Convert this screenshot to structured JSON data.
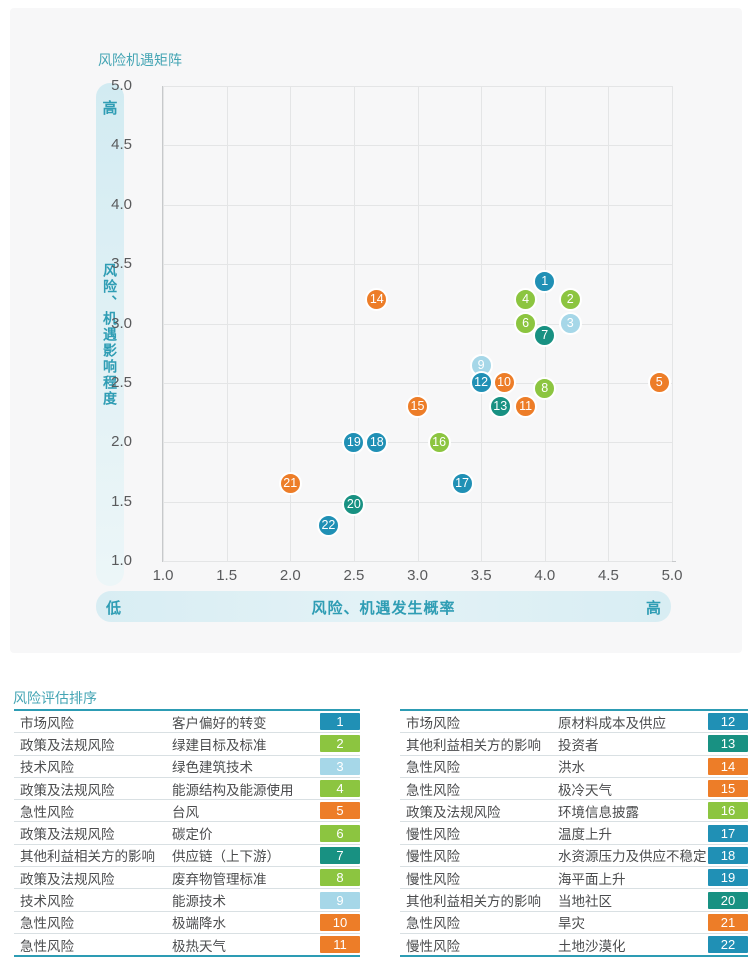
{
  "chart": {
    "title": "风险机遇矩阵",
    "y_band": {
      "high_label": "高",
      "title": "风险、机遇影响程度"
    },
    "x_band": {
      "low_label": "低",
      "title": "风险、机遇发生概率",
      "high_label": "高"
    }
  },
  "chart_data": {
    "type": "scatter",
    "title": "风险机遇矩阵",
    "xlabel": "风险、机遇发生概率",
    "ylabel": "风险、机遇影响程度",
    "xlim": [
      1.0,
      5.0
    ],
    "ylim": [
      1.0,
      5.0
    ],
    "grid": true,
    "x_ticks": [
      "1.0",
      "1.5",
      "2.0",
      "2.5",
      "3.0",
      "3.5",
      "4.0",
      "4.5",
      "5.0"
    ],
    "y_ticks": [
      "5.0",
      "4.5",
      "4.0",
      "3.5",
      "3.0",
      "2.5",
      "2.0",
      "1.5",
      "1.0"
    ],
    "categories": {
      "market": {
        "label": "市场风险",
        "color": "#2090b5"
      },
      "policy": {
        "label": "政策及法规风险",
        "color": "#8cc540"
      },
      "tech": {
        "label": "技术风险",
        "color": "#a6d7e8"
      },
      "acute": {
        "label": "急性风险",
        "color": "#ed7d28"
      },
      "chronic": {
        "label": "慢性风险",
        "color": "#2090b5"
      },
      "stakeholder": {
        "label": "其他利益相关方的影响",
        "color": "#189182"
      }
    },
    "draw_order": [
      "policy",
      "tech",
      "market",
      "chronic",
      "stakeholder",
      "acute"
    ],
    "points": [
      {
        "id": 1,
        "x": 4.0,
        "y": 3.35,
        "category": "market"
      },
      {
        "id": 2,
        "x": 4.2,
        "y": 3.2,
        "category": "policy"
      },
      {
        "id": 3,
        "x": 4.2,
        "y": 3.0,
        "category": "tech"
      },
      {
        "id": 4,
        "x": 3.85,
        "y": 3.2,
        "category": "policy"
      },
      {
        "id": 5,
        "x": 4.9,
        "y": 2.5,
        "category": "acute"
      },
      {
        "id": 6,
        "x": 3.85,
        "y": 3.0,
        "category": "policy"
      },
      {
        "id": 7,
        "x": 4.0,
        "y": 2.9,
        "category": "stakeholder"
      },
      {
        "id": 8,
        "x": 4.0,
        "y": 2.45,
        "category": "policy"
      },
      {
        "id": 9,
        "x": 3.5,
        "y": 2.65,
        "category": "tech"
      },
      {
        "id": 10,
        "x": 3.68,
        "y": 2.5,
        "category": "acute"
      },
      {
        "id": 11,
        "x": 3.85,
        "y": 2.3,
        "category": "acute"
      },
      {
        "id": 12,
        "x": 3.5,
        "y": 2.5,
        "category": "market"
      },
      {
        "id": 13,
        "x": 3.65,
        "y": 2.3,
        "category": "stakeholder"
      },
      {
        "id": 14,
        "x": 2.68,
        "y": 3.2,
        "category": "acute"
      },
      {
        "id": 15,
        "x": 3.0,
        "y": 2.3,
        "category": "acute"
      },
      {
        "id": 16,
        "x": 3.17,
        "y": 2.0,
        "category": "policy"
      },
      {
        "id": 17,
        "x": 3.35,
        "y": 1.65,
        "category": "chronic"
      },
      {
        "id": 18,
        "x": 2.68,
        "y": 2.0,
        "category": "chronic"
      },
      {
        "id": 19,
        "x": 2.5,
        "y": 2.0,
        "category": "chronic"
      },
      {
        "id": 20,
        "x": 2.5,
        "y": 1.48,
        "category": "stakeholder"
      },
      {
        "id": 21,
        "x": 2.0,
        "y": 1.65,
        "category": "acute"
      },
      {
        "id": 22,
        "x": 2.3,
        "y": 1.3,
        "category": "chronic"
      }
    ]
  },
  "ranking": {
    "title": "风险评估排序",
    "left_rows": [
      {
        "category": "市场风险",
        "item": "客户偏好的转变",
        "rank": 1,
        "color_key": "market"
      },
      {
        "category": "政策及法规风险",
        "item": "绿建目标及标准",
        "rank": 2,
        "color_key": "policy"
      },
      {
        "category": "技术风险",
        "item": "绿色建筑技术",
        "rank": 3,
        "color_key": "tech"
      },
      {
        "category": "政策及法规风险",
        "item": "能源结构及能源使用",
        "rank": 4,
        "color_key": "policy"
      },
      {
        "category": "急性风险",
        "item": "台风",
        "rank": 5,
        "color_key": "acute"
      },
      {
        "category": "政策及法规风险",
        "item": "碳定价",
        "rank": 6,
        "color_key": "policy"
      },
      {
        "category": "其他利益相关方的影响",
        "item": "供应链（上下游）",
        "rank": 7,
        "color_key": "stakeholder"
      },
      {
        "category": "政策及法规风险",
        "item": "废弃物管理标准",
        "rank": 8,
        "color_key": "policy"
      },
      {
        "category": "技术风险",
        "item": "能源技术",
        "rank": 9,
        "color_key": "tech"
      },
      {
        "category": "急性风险",
        "item": "极端降水",
        "rank": 10,
        "color_key": "acute"
      },
      {
        "category": "急性风险",
        "item": "极热天气",
        "rank": 11,
        "color_key": "acute"
      }
    ],
    "right_rows": [
      {
        "category": "市场风险",
        "item": "原材料成本及供应",
        "rank": 12,
        "color_key": "market"
      },
      {
        "category": "其他利益相关方的影响",
        "item": "投资者",
        "rank": 13,
        "color_key": "stakeholder"
      },
      {
        "category": "急性风险",
        "item": "洪水",
        "rank": 14,
        "color_key": "acute"
      },
      {
        "category": "急性风险",
        "item": "极冷天气",
        "rank": 15,
        "color_key": "acute"
      },
      {
        "category": "政策及法规风险",
        "item": "环境信息披露",
        "rank": 16,
        "color_key": "policy"
      },
      {
        "category": "慢性风险",
        "item": "温度上升",
        "rank": 17,
        "color_key": "chronic"
      },
      {
        "category": "慢性风险",
        "item": "水资源压力及供应不稳定",
        "rank": 18,
        "color_key": "chronic"
      },
      {
        "category": "慢性风险",
        "item": "海平面上升",
        "rank": 19,
        "color_key": "chronic"
      },
      {
        "category": "其他利益相关方的影响",
        "item": "当地社区",
        "rank": 20,
        "color_key": "stakeholder"
      },
      {
        "category": "急性风险",
        "item": "旱灾",
        "rank": 21,
        "color_key": "acute"
      },
      {
        "category": "慢性风险",
        "item": "土地沙漠化",
        "rank": 22,
        "color_key": "chronic"
      }
    ]
  }
}
